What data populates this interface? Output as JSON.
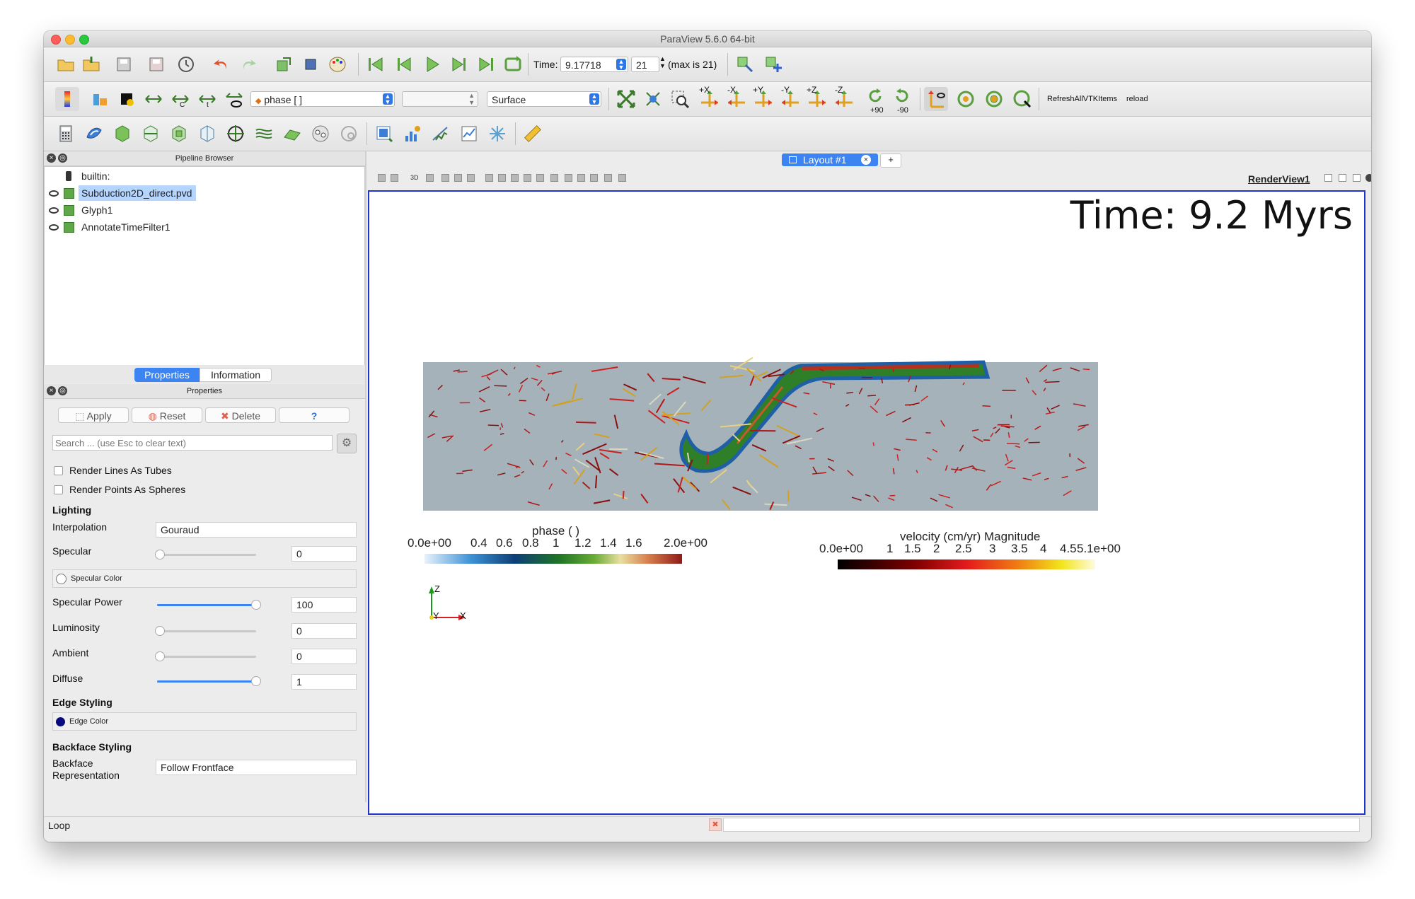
{
  "window": {
    "title": "ParaView 5.6.0 64-bit"
  },
  "toolbar_time": {
    "time_label": "Time:",
    "time_value": "9.17718",
    "timestep_value": "21",
    "max_label": "(max is 21)"
  },
  "toolbar_display": {
    "color_by": "phase [ ]",
    "component": "",
    "representation": "Surface",
    "rotate_plus90": "+90",
    "rotate_minus90": "-90",
    "axis_labels": [
      "+X",
      "-X",
      "+Y",
      "-Y",
      "+Z",
      "-Z"
    ],
    "refresh_label": "RefreshAllVTKItems",
    "reload_label": "reload"
  },
  "pipeline_browser": {
    "title": "Pipeline Browser",
    "items": [
      {
        "label": "builtin:"
      },
      {
        "label": "Subduction2D_direct.pvd",
        "selected": true
      },
      {
        "label": "Glyph1"
      },
      {
        "label": "AnnotateTimeFilter1"
      }
    ]
  },
  "tabs": {
    "properties": "Properties",
    "information": "Information"
  },
  "properties": {
    "title": "Properties",
    "apply": "Apply",
    "reset": "Reset",
    "delete": "Delete",
    "help": "?",
    "search_placeholder": "Search ... (use Esc to clear text)",
    "render_lines_as_tubes": "Render Lines As Tubes",
    "render_points_as_spheres": "Render Points As Spheres",
    "lighting": "Lighting",
    "interpolation_label": "Interpolation",
    "interpolation_value": "Gouraud",
    "specular_label": "Specular",
    "specular_value": "0",
    "specular_color": "Specular Color",
    "specular_power_label": "Specular Power",
    "specular_power_value": "100",
    "luminosity_label": "Luminosity",
    "luminosity_value": "0",
    "ambient_label": "Ambient",
    "ambient_value": "0",
    "diffuse_label": "Diffuse",
    "diffuse_value": "1",
    "edge_styling": "Edge Styling",
    "edge_color": "Edge Color",
    "backface_styling": "Backface Styling",
    "backface_label_1": "Backface",
    "backface_label_2": "Representation",
    "backface_value": "Follow Frontface"
  },
  "layout": {
    "tab_label": "Layout #1",
    "add_tab": "+",
    "view_name": "RenderView1",
    "view_toolbar_text": "3D"
  },
  "render": {
    "time_annotation": "Time: 9.2 Myrs",
    "phase_bar": {
      "title": "phase ( )",
      "ticks": [
        "0.0e+00",
        "0.4",
        "0.6",
        "0.8",
        "1",
        "1.2",
        "1.4",
        "1.6",
        "2.0e+00"
      ]
    },
    "velocity_bar": {
      "title": "velocity (cm/yr) Magnitude",
      "ticks": [
        "0.0e+00",
        "1",
        "1.5",
        "2",
        "2.5",
        "3",
        "3.5",
        "4",
        "4.5",
        "5.1e+00"
      ]
    },
    "axes": {
      "z": "Z",
      "y": "Y",
      "x": "X"
    }
  },
  "status_bar": {
    "text": "Loop"
  },
  "colors": {
    "accent": "#2f76e8",
    "view_border": "#2233cc",
    "domain_fill": "#a5b2b9",
    "slab_green": "#2f7f29"
  }
}
